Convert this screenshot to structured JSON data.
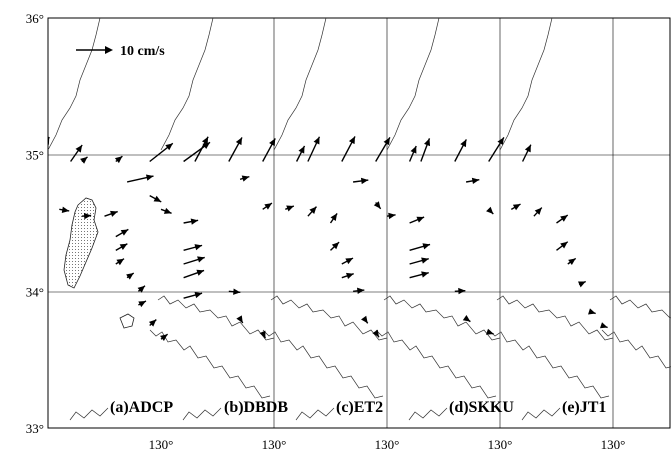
{
  "chart_data": {
    "type": "quiver",
    "title": "",
    "scale_arrow": {
      "label": "10 cm/s",
      "value_cm_s": 10
    },
    "ylim": [
      33,
      36
    ],
    "y_ticks": [
      {
        "value": 33,
        "label": "33°"
      },
      {
        "value": 34,
        "label": "34°"
      },
      {
        "value": 35,
        "label": "35°"
      },
      {
        "value": 36,
        "label": "36°"
      }
    ],
    "x_tick_label": "130°",
    "panels": [
      {
        "label": "(a)ADCP",
        "vectors": [
          {
            "lon": 128.3,
            "lat": 34.95,
            "u": 3.2,
            "v": 7.6
          },
          {
            "lon": 128.6,
            "lat": 34.95,
            "u": 3.5,
            "v": 7.7
          },
          {
            "lon": 128.9,
            "lat": 34.95,
            "u": 3.8,
            "v": 7.4
          },
          {
            "lon": 129.2,
            "lat": 34.95,
            "u": 3.5,
            "v": 5.0
          },
          {
            "lon": 128.7,
            "lat": 34.82,
            "u": 2.0,
            "v": 0.3
          },
          {
            "lon": 128.9,
            "lat": 34.6,
            "u": 1.7,
            "v": -1.9
          },
          {
            "lon": 129.1,
            "lat": 34.6,
            "u": 3.0,
            "v": -0.5
          },
          {
            "lon": 129.3,
            "lat": 34.55,
            "u": 2.8,
            "v": 0.2
          },
          {
            "lon": 129.5,
            "lat": 34.55,
            "u": 4.0,
            "v": 1.4
          },
          {
            "lon": 129.6,
            "lat": 34.4,
            "u": 3.8,
            "v": 2.2
          },
          {
            "lon": 129.6,
            "lat": 34.3,
            "u": 3.5,
            "v": 2.0
          },
          {
            "lon": 129.6,
            "lat": 34.2,
            "u": 2.5,
            "v": 1.6
          },
          {
            "lon": 129.7,
            "lat": 34.1,
            "u": 2.0,
            "v": 1.4
          },
          {
            "lon": 129.8,
            "lat": 34.0,
            "u": 2.0,
            "v": 1.7
          },
          {
            "lon": 129.8,
            "lat": 33.9,
            "u": 2.3,
            "v": 1.2
          },
          {
            "lon": 129.9,
            "lat": 33.75,
            "u": 2.0,
            "v": 1.8
          },
          {
            "lon": 130.0,
            "lat": 33.65,
            "u": 2.0,
            "v": 1.5
          }
        ]
      },
      {
        "label": "(b)DBDB",
        "vectors": [
          {
            "lon": 128.3,
            "lat": 34.95,
            "u": 1.7,
            "v": 1.4
          },
          {
            "lon": 128.6,
            "lat": 34.95,
            "u": 2.0,
            "v": 1.6
          },
          {
            "lon": 128.9,
            "lat": 34.95,
            "u": 7.0,
            "v": 5.5
          },
          {
            "lon": 129.2,
            "lat": 34.95,
            "u": 8.0,
            "v": 5.8
          },
          {
            "lon": 128.7,
            "lat": 34.8,
            "u": 8.0,
            "v": 1.8
          },
          {
            "lon": 128.9,
            "lat": 34.7,
            "u": 3.5,
            "v": -1.9
          },
          {
            "lon": 129.0,
            "lat": 34.6,
            "u": 3.2,
            "v": -1.2
          },
          {
            "lon": 129.2,
            "lat": 34.5,
            "u": 4.4,
            "v": 0.8
          },
          {
            "lon": 129.2,
            "lat": 34.3,
            "u": 5.6,
            "v": 1.5
          },
          {
            "lon": 129.2,
            "lat": 34.2,
            "u": 6.4,
            "v": 2.0
          },
          {
            "lon": 129.2,
            "lat": 34.1,
            "u": 6.2,
            "v": 2.2
          },
          {
            "lon": 129.2,
            "lat": 33.95,
            "u": 5.6,
            "v": 1.5
          },
          {
            "lon": 129.6,
            "lat": 34.0,
            "u": 3.5,
            "v": -0.3
          },
          {
            "lon": 129.7,
            "lat": 33.8,
            "u": 0.8,
            "v": -1.3
          },
          {
            "lon": 129.9,
            "lat": 33.7,
            "u": 0.8,
            "v": -1.8
          }
        ]
      },
      {
        "label": "(c)ET2",
        "vectors": [
          {
            "lon": 128.3,
            "lat": 34.95,
            "u": 4.0,
            "v": 7.5
          },
          {
            "lon": 128.6,
            "lat": 34.95,
            "u": 4.0,
            "v": 7.3
          },
          {
            "lon": 128.9,
            "lat": 34.95,
            "u": 3.8,
            "v": 7.0
          },
          {
            "lon": 129.2,
            "lat": 34.95,
            "u": 2.4,
            "v": 4.7
          },
          {
            "lon": 128.7,
            "lat": 34.82,
            "u": 2.8,
            "v": 0.8
          },
          {
            "lon": 128.9,
            "lat": 34.6,
            "u": 2.8,
            "v": 1.9
          },
          {
            "lon": 129.1,
            "lat": 34.6,
            "u": 2.6,
            "v": 1.0
          },
          {
            "lon": 129.3,
            "lat": 34.55,
            "u": 2.6,
            "v": 2.9
          },
          {
            "lon": 129.5,
            "lat": 34.5,
            "u": 2.0,
            "v": 2.9
          },
          {
            "lon": 129.5,
            "lat": 34.3,
            "u": 2.6,
            "v": 2.5
          },
          {
            "lon": 129.6,
            "lat": 34.2,
            "u": 3.4,
            "v": 1.8
          },
          {
            "lon": 129.6,
            "lat": 34.1,
            "u": 3.6,
            "v": 1.2
          },
          {
            "lon": 129.7,
            "lat": 34.0,
            "u": 3.4,
            "v": 0.4
          },
          {
            "lon": 129.8,
            "lat": 33.8,
            "u": 1.0,
            "v": -1.4
          },
          {
            "lon": 129.9,
            "lat": 33.7,
            "u": 1.0,
            "v": -1.5
          }
        ]
      },
      {
        "label": "(d)SKKU",
        "vectors": [
          {
            "lon": 128.3,
            "lat": 34.95,
            "u": 3.5,
            "v": 7.5
          },
          {
            "lon": 128.6,
            "lat": 34.95,
            "u": 4.0,
            "v": 7.6
          },
          {
            "lon": 128.9,
            "lat": 34.95,
            "u": 4.3,
            "v": 7.3
          },
          {
            "lon": 129.2,
            "lat": 34.95,
            "u": 2.0,
            "v": 4.7
          },
          {
            "lon": 128.7,
            "lat": 34.8,
            "u": 4.6,
            "v": 0.6
          },
          {
            "lon": 128.9,
            "lat": 34.65,
            "u": 1.5,
            "v": -1.9
          },
          {
            "lon": 129.0,
            "lat": 34.55,
            "u": 2.6,
            "v": 0.4
          },
          {
            "lon": 129.2,
            "lat": 34.5,
            "u": 4.4,
            "v": 1.8
          },
          {
            "lon": 129.2,
            "lat": 34.3,
            "u": 6.2,
            "v": 1.8
          },
          {
            "lon": 129.2,
            "lat": 34.2,
            "u": 5.8,
            "v": 1.6
          },
          {
            "lon": 129.2,
            "lat": 34.1,
            "u": 5.8,
            "v": 1.5
          },
          {
            "lon": 129.6,
            "lat": 34.0,
            "u": 3.2,
            "v": 0.2
          },
          {
            "lon": 129.7,
            "lat": 33.8,
            "u": 1.3,
            "v": -0.9
          },
          {
            "lon": 129.9,
            "lat": 33.7,
            "u": 1.5,
            "v": -0.5
          }
        ]
      },
      {
        "label": "(e)JT1",
        "vectors": [
          {
            "lon": 128.3,
            "lat": 34.95,
            "u": 2.6,
            "v": 7.0
          },
          {
            "lon": 128.6,
            "lat": 34.95,
            "u": 3.5,
            "v": 6.7
          },
          {
            "lon": 128.9,
            "lat": 34.95,
            "u": 4.6,
            "v": 7.3
          },
          {
            "lon": 129.2,
            "lat": 34.95,
            "u": 2.5,
            "v": 5.1
          },
          {
            "lon": 128.7,
            "lat": 34.8,
            "u": 4.0,
            "v": 0.7
          },
          {
            "lon": 128.9,
            "lat": 34.6,
            "u": 1.4,
            "v": -1.4
          },
          {
            "lon": 129.1,
            "lat": 34.6,
            "u": 2.8,
            "v": 1.6
          },
          {
            "lon": 129.3,
            "lat": 34.55,
            "u": 2.4,
            "v": 2.6
          },
          {
            "lon": 129.5,
            "lat": 34.5,
            "u": 3.4,
            "v": 2.4
          },
          {
            "lon": 129.5,
            "lat": 34.3,
            "u": 3.4,
            "v": 2.6
          },
          {
            "lon": 129.6,
            "lat": 34.2,
            "u": 2.4,
            "v": 1.7
          },
          {
            "lon": 129.7,
            "lat": 34.05,
            "u": 2.0,
            "v": 0.9
          },
          {
            "lon": 129.8,
            "lat": 33.85,
            "u": 1.6,
            "v": -0.5
          },
          {
            "lon": 129.9,
            "lat": 33.75,
            "u": 1.8,
            "v": -0.6
          }
        ]
      }
    ]
  }
}
